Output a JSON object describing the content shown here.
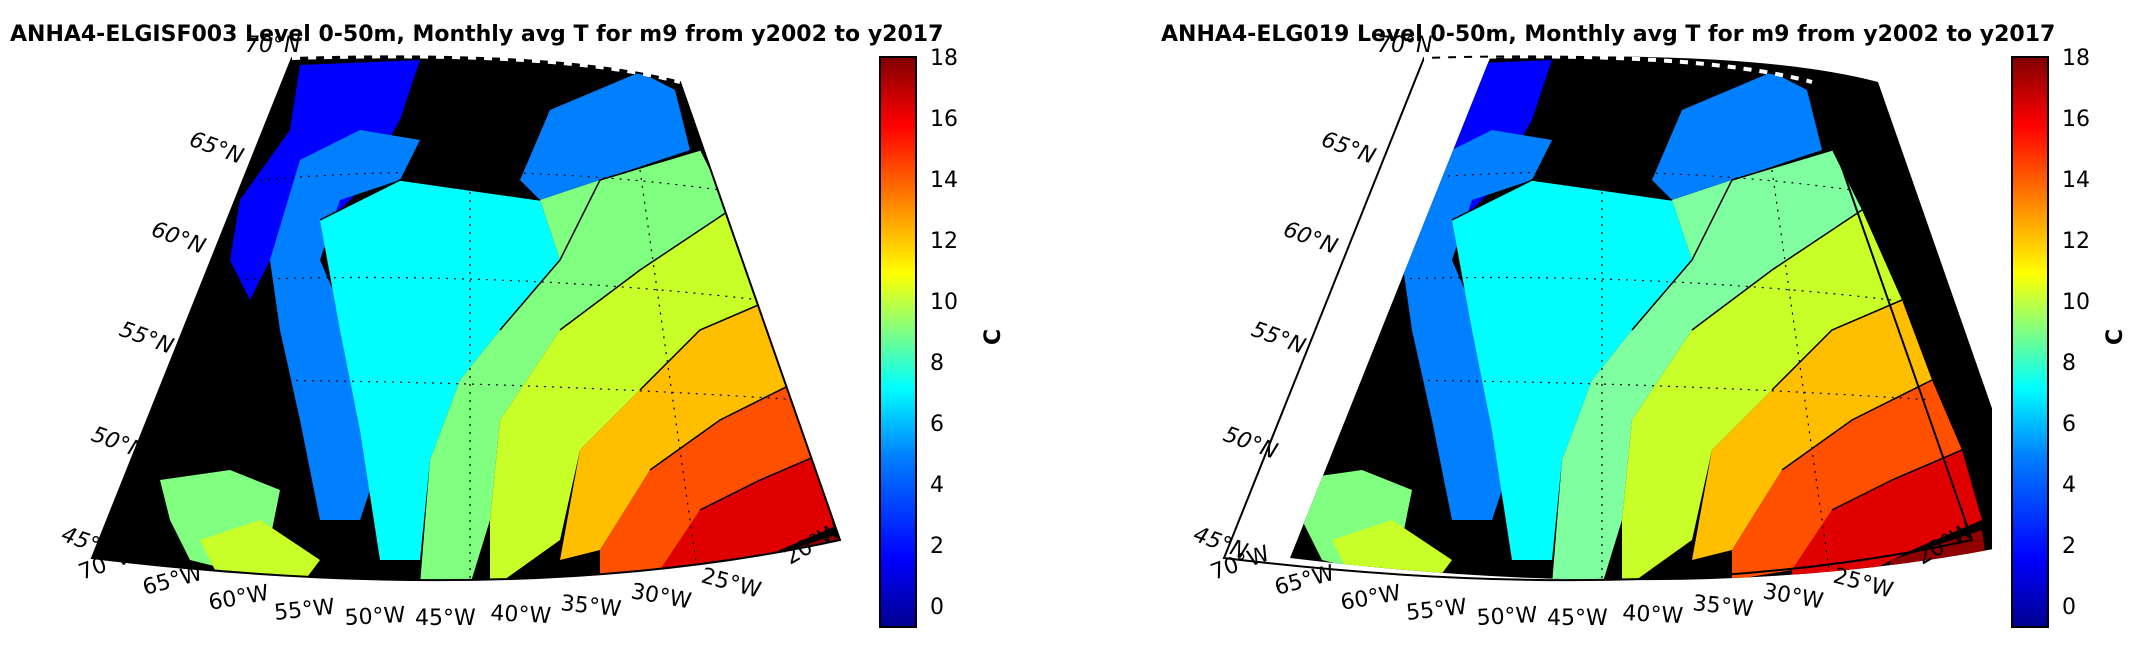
{
  "panels": [
    {
      "title": "ANHA4-ELGISF003 Level 0-50m, Monthly avg T for m9 from y2002 to y2017",
      "lat_labels": [
        "70°N",
        "65°N",
        "60°N",
        "55°N",
        "50°N",
        "45°N"
      ],
      "lon_labels": [
        "70°W",
        "65°W",
        "60°W",
        "55°W",
        "50°W",
        "45°W",
        "40°W",
        "35°W",
        "30°W",
        "25°W",
        "20°W"
      ],
      "colorbar": {
        "label": "C",
        "ticks": [
          "18",
          "16",
          "14",
          "12",
          "10",
          "8",
          "6",
          "4",
          "2",
          "0"
        ]
      }
    },
    {
      "title": "ANHA4-ELG019 Level 0-50m, Monthly avg T for m9 from y2002 to y2017",
      "lat_labels": [
        "70°N",
        "65°N",
        "60°N",
        "55°N",
        "50°N",
        "45°N"
      ],
      "lon_labels": [
        "70°W",
        "65°W",
        "60°W",
        "55°W",
        "50°W",
        "45°W",
        "40°W",
        "35°W",
        "30°W",
        "25°W",
        "20°W"
      ],
      "colorbar": {
        "label": "C",
        "ticks": [
          "18",
          "16",
          "14",
          "12",
          "10",
          "8",
          "6",
          "4",
          "2",
          "0"
        ]
      }
    }
  ],
  "colormap": [
    "#00008f",
    "#0000ff",
    "#0080ff",
    "#00ffff",
    "#80ff80",
    "#ffff00",
    "#ff8000",
    "#ff0000",
    "#800000"
  ],
  "land_color": "#000000",
  "contour_color": "#000000"
}
